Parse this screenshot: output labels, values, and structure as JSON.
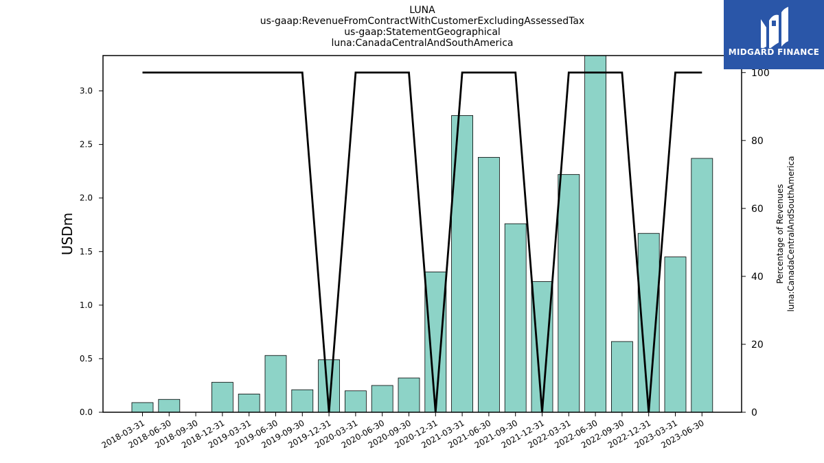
{
  "title_lines": [
    "LUNA",
    "us-gaap:RevenueFromContractWithCustomerExcludingAssessedTax",
    "us-gaap:StatementGeographical",
    "luna:CanadaCentralAndSouthAmerica"
  ],
  "logo": {
    "text": "MIDGARD FINANCE",
    "bg_color": "#2a56a8"
  },
  "chart_data": {
    "type": "bar",
    "categories": [
      "2018-03-31",
      "2018-06-30",
      "2018-09-30",
      "2018-12-31",
      "2019-03-31",
      "2019-06-30",
      "2019-09-30",
      "2019-12-31",
      "2020-03-31",
      "2020-06-30",
      "2020-09-30",
      "2020-12-31",
      "2021-03-31",
      "2021-06-30",
      "2021-09-30",
      "2021-12-31",
      "2022-03-31",
      "2022-06-30",
      "2022-09-30",
      "2022-12-31",
      "2023-03-31",
      "2023-06-30"
    ],
    "series": [
      {
        "axis": "left",
        "type": "bar",
        "color": "#8dd3c7",
        "values": [
          0.09,
          0.12,
          0,
          0.28,
          0.17,
          0.53,
          0.21,
          0.49,
          0.2,
          0.25,
          0.32,
          1.31,
          2.77,
          2.38,
          1.76,
          1.22,
          2.22,
          3.35,
          0.66,
          1.67,
          1.45,
          2.37
        ]
      },
      {
        "axis": "right",
        "type": "line",
        "color": "#000000",
        "values": [
          100,
          100,
          100,
          100,
          100,
          100,
          100,
          0,
          100,
          100,
          100,
          0,
          100,
          100,
          100,
          0,
          100,
          100,
          100,
          0,
          100,
          100
        ]
      }
    ],
    "ylabel": "USDm",
    "y2label_lines": [
      "Percentage of Revenues",
      "luna:CanadaCentralAndSouthAmerica"
    ],
    "ylim": [
      0,
      3.33
    ],
    "y2lim": [
      0,
      105
    ],
    "yticks": [
      "0.0",
      "0.5",
      "1.0",
      "1.5",
      "2.0",
      "2.5",
      "3.0"
    ],
    "y2ticks": [
      "0",
      "20",
      "40",
      "60",
      "80",
      "100"
    ],
    "grid": false,
    "legend": "none"
  }
}
